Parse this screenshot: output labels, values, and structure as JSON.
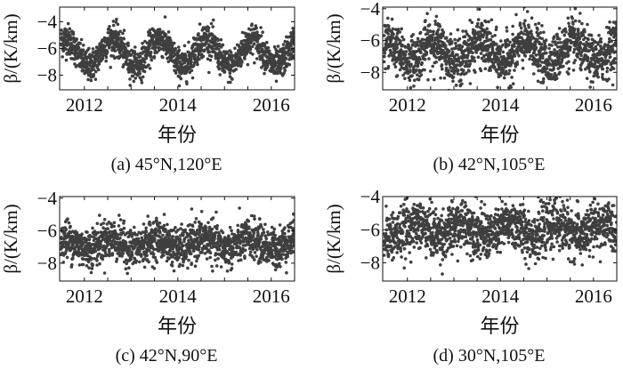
{
  "chart_data": [
    {
      "type": "scatter",
      "title": "(a) 45°N,120°E",
      "xlabel": "年份",
      "ylabel": "β/(K/km)",
      "xlim": [
        2011.47,
        2016.5
      ],
      "ylim": [
        -9.1,
        -2.9
      ],
      "xticks": [
        2012,
        2014,
        2016
      ],
      "yticks": [
        -4,
        -6,
        -8
      ],
      "model": {
        "mean": -6.3,
        "amplitude": 1.0,
        "peak_phase": 0.6,
        "spread": 0.6,
        "start": 2011.5,
        "end": 2016.5,
        "points_per_year": 330
      }
    },
    {
      "type": "scatter",
      "title": "(b) 42°N,105°E",
      "xlabel": "年份",
      "ylabel": "β/(K/km)",
      "xlim": [
        2011.47,
        2016.5
      ],
      "ylim": [
        -9.1,
        -3.9
      ],
      "xticks": [
        2012,
        2014,
        2016
      ],
      "yticks": [
        -4,
        -6,
        -8
      ],
      "model": {
        "mean": -6.7,
        "amplitude": 0.6,
        "peak_phase": 0.55,
        "spread": 0.75,
        "start": 2011.5,
        "end": 2016.5,
        "points_per_year": 330
      }
    },
    {
      "type": "scatter",
      "title": "(c) 42°N,90°E",
      "xlabel": "年份",
      "ylabel": "β/(K/km)",
      "xlim": [
        2011.47,
        2016.5
      ],
      "ylim": [
        -9.1,
        -3.9
      ],
      "xticks": [
        2012,
        2014,
        2016
      ],
      "yticks": [
        -4,
        -6,
        -8
      ],
      "model": {
        "mean": -6.8,
        "amplitude": 0.3,
        "peak_phase": 0.55,
        "spread": 0.6,
        "start": 2011.5,
        "end": 2016.5,
        "points_per_year": 330
      }
    },
    {
      "type": "scatter",
      "title": "(d) 30°N,105°E",
      "xlabel": "年份",
      "ylabel": "β/(K/km)",
      "xlim": [
        2011.47,
        2016.5
      ],
      "ylim": [
        -9.1,
        -4.0
      ],
      "xticks": [
        2012,
        2014,
        2016
      ],
      "yticks": [
        -4,
        -6,
        -8
      ],
      "model": {
        "mean": -6.0,
        "amplitude": 0.35,
        "peak_phase": 0.2,
        "spread": 0.75,
        "start": 2011.5,
        "end": 2016.5,
        "points_per_year": 330
      }
    }
  ],
  "colors": {
    "points": "#3f3f3f",
    "axes": "#111111"
  }
}
